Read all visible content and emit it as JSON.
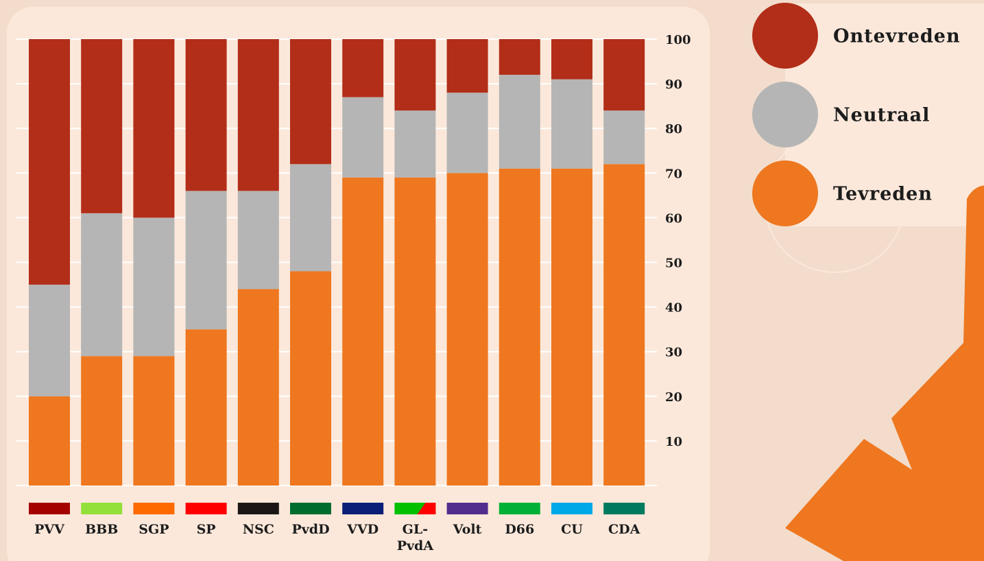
{
  "chart_data": {
    "type": "stacked_bar",
    "categories": [
      "PVV",
      "BBB",
      "SGP",
      "SP",
      "NSC",
      "PvdD",
      "VVD",
      "GL-PvdA",
      "Volt",
      "D66",
      "CU",
      "CDA"
    ],
    "category_colors": [
      "#a50000",
      "#94e03a",
      "#ff6a00",
      "#ff0000",
      "#1b1716",
      "#006c2e",
      "#0b1f78",
      [
        "#00c000",
        "#ff0000"
      ],
      "#532d8e",
      "#00b136",
      "#00a8e8",
      "#007a5e"
    ],
    "series": [
      {
        "name": "Tevreden",
        "color": "#ee771f",
        "values": [
          20,
          29,
          29,
          35,
          44,
          48,
          69,
          69,
          70,
          71,
          71,
          72
        ]
      },
      {
        "name": "Neutraal",
        "color": "#b5b5b5",
        "values": [
          25,
          32,
          31,
          31,
          22,
          24,
          18,
          15,
          18,
          21,
          20,
          12
        ]
      },
      {
        "name": "Ontevreden",
        "color": "#b22e18",
        "values": [
          55,
          39,
          40,
          34,
          34,
          28,
          13,
          16,
          12,
          8,
          9,
          16
        ]
      }
    ],
    "ylim": [
      0,
      100
    ],
    "yticks": [
      10,
      20,
      30,
      40,
      50,
      60,
      70,
      80,
      90,
      100
    ],
    "grid": true
  }
}
